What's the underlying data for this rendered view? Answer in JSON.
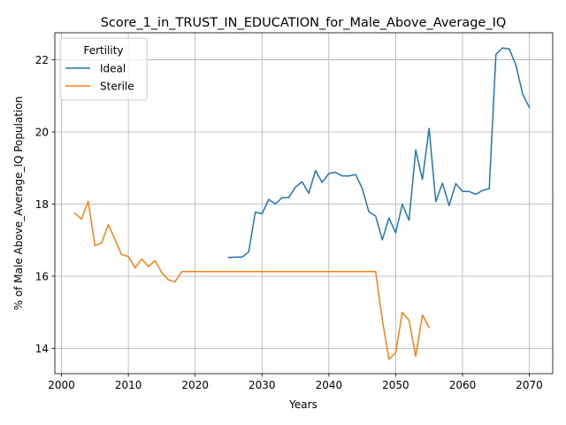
{
  "chart_data": {
    "type": "line",
    "title": "Score_1_in_TRUST_IN_EDUCATION_for_Male_Above_Average_IQ",
    "xlabel": "Years",
    "ylabel": "% of Male Above_Average_IQ Population",
    "xlim": [
      1999,
      2073.5
    ],
    "ylim": [
      13.3,
      22.75
    ],
    "xticks": [
      2000,
      2010,
      2020,
      2030,
      2040,
      2050,
      2060,
      2070
    ],
    "yticks": [
      14,
      16,
      18,
      20,
      22
    ],
    "grid": true,
    "legend": {
      "title": "Fertility",
      "placement": "top-left",
      "entries": [
        "Ideal",
        "Sterile"
      ]
    },
    "series": [
      {
        "name": "Ideal",
        "color": "#1f77b4",
        "x": [
          2025,
          2026,
          2027,
          2028,
          2029,
          2030,
          2031,
          2032,
          2033,
          2034,
          2035,
          2036,
          2037,
          2038,
          2039,
          2040,
          2041,
          2042,
          2043,
          2044,
          2045,
          2046,
          2047,
          2048,
          2049,
          2050,
          2051,
          2052,
          2053,
          2054,
          2055,
          2056,
          2057,
          2058,
          2059,
          2060,
          2061,
          2062,
          2063,
          2064,
          2065,
          2066,
          2067,
          2068,
          2069,
          2070
        ],
        "y": [
          16.52,
          16.53,
          16.53,
          16.67,
          17.78,
          17.73,
          18.13,
          18.0,
          18.18,
          18.18,
          18.47,
          18.62,
          18.3,
          18.93,
          18.6,
          18.85,
          18.88,
          18.78,
          18.78,
          18.82,
          18.43,
          17.78,
          17.67,
          17.01,
          17.62,
          17.2,
          18.0,
          17.55,
          19.5,
          18.68,
          20.1,
          18.07,
          18.58,
          17.96,
          18.57,
          18.35,
          18.35,
          18.27,
          18.38,
          18.43,
          22.15,
          22.33,
          22.3,
          21.85,
          21.05,
          20.68
        ]
      },
      {
        "name": "Sterile",
        "color": "#ff7f0e",
        "x": [
          2002,
          2003,
          2004,
          2005,
          2006,
          2007,
          2008,
          2009,
          2010,
          2011,
          2012,
          2013,
          2014,
          2015,
          2016,
          2017,
          2018,
          2019,
          2020,
          2021,
          2022,
          2023,
          2024,
          2025,
          2026,
          2027,
          2028,
          2029,
          2030,
          2031,
          2032,
          2033,
          2034,
          2035,
          2036,
          2037,
          2038,
          2039,
          2040,
          2041,
          2042,
          2043,
          2044,
          2045,
          2046,
          2047,
          2048,
          2049,
          2050,
          2051,
          2052,
          2053,
          2054,
          2055
        ],
        "y": [
          17.75,
          17.58,
          18.08,
          16.85,
          16.92,
          17.43,
          17.02,
          16.6,
          16.55,
          16.23,
          16.48,
          16.27,
          16.43,
          16.1,
          15.9,
          15.85,
          16.13,
          16.13,
          16.13,
          16.13,
          16.13,
          16.13,
          16.13,
          16.13,
          16.13,
          16.13,
          16.13,
          16.13,
          16.13,
          16.13,
          16.13,
          16.13,
          16.13,
          16.13,
          16.13,
          16.13,
          16.13,
          16.13,
          16.13,
          16.13,
          16.13,
          16.13,
          16.13,
          16.13,
          16.13,
          16.13,
          14.8,
          13.7,
          13.88,
          15.0,
          14.78,
          13.78,
          14.93,
          14.58
        ]
      }
    ]
  }
}
